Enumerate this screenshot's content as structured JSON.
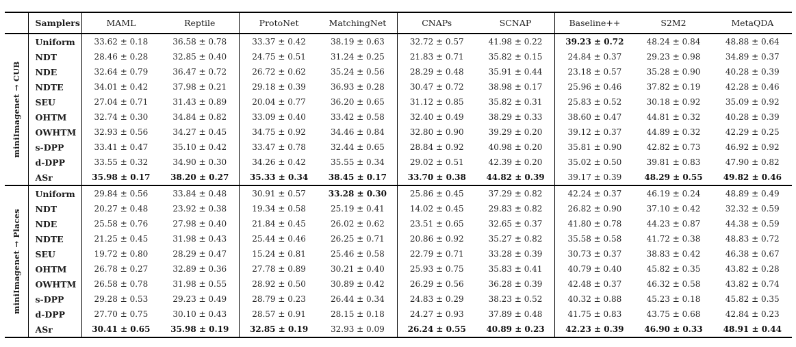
{
  "colors": {
    "background": "#ffffff",
    "text": "#1b1b1b",
    "rule": "#000000"
  },
  "table": {
    "header": {
      "samplers": "Samplers",
      "methods": [
        "MAML",
        "Reptile",
        "ProtoNet",
        "MatchingNet",
        "CNAPs",
        "SCNAP",
        "Baseline++",
        "S2M2",
        "MetaQDA"
      ]
    },
    "sections": [
      {
        "group_label": "miniImagenet → CUB",
        "rows": [
          {
            "sampler": "Uniform",
            "values": [
              "33.62 ± 0.18",
              "36.58 ± 0.78",
              "33.37 ± 0.42",
              "38.19 ± 0.63",
              "32.72 ± 0.57",
              "41.98 ± 0.22",
              "39.23 ± 0.72",
              "48.24 ± 0.84",
              "48.88 ± 0.64"
            ],
            "bold": [
              6
            ]
          },
          {
            "sampler": "NDT",
            "values": [
              "28.46 ± 0.28",
              "32.85 ± 0.40",
              "24.75 ± 0.51",
              "31.24 ± 0.25",
              "21.83 ± 0.71",
              "35.82 ± 0.15",
              "24.84 ± 0.37",
              "29.23 ± 0.98",
              "34.89 ± 0.37"
            ],
            "bold": []
          },
          {
            "sampler": "NDE",
            "values": [
              "32.64 ± 0.79",
              "36.47 ± 0.72",
              "26.72 ± 0.62",
              "35.24 ± 0.56",
              "28.29 ± 0.48",
              "35.91 ± 0.44",
              "23.18 ± 0.57",
              "35.28 ± 0.90",
              "40.28 ± 0.39"
            ],
            "bold": []
          },
          {
            "sampler": "NDTE",
            "values": [
              "34.01 ± 0.42",
              "37.98 ± 0.21",
              "29.18 ± 0.39",
              "36.93 ± 0.28",
              "30.47 ± 0.72",
              "38.98 ± 0.17",
              "25.96 ± 0.46",
              "37.82 ± 0.19",
              "42.28 ± 0.46"
            ],
            "bold": []
          },
          {
            "sampler": "SEU",
            "values": [
              "27.04 ± 0.71",
              "31.43 ± 0.89",
              "20.04 ± 0.77",
              "36.20 ± 0.65",
              "31.12 ± 0.85",
              "35.82 ± 0.31",
              "25.83 ± 0.52",
              "30.18 ± 0.92",
              "35.09 ± 0.92"
            ],
            "bold": []
          },
          {
            "sampler": "OHTM",
            "values": [
              "32.74 ± 0.30",
              "34.84 ± 0.82",
              "33.09 ± 0.40",
              "33.42 ± 0.58",
              "32.40 ± 0.49",
              "38.29 ± 0.33",
              "38.60 ± 0.47",
              "44.81 ± 0.32",
              "40.28 ± 0.39"
            ],
            "bold": []
          },
          {
            "sampler": "OWHTM",
            "values": [
              "32.93 ± 0.56",
              "34.27 ± 0.45",
              "34.75 ± 0.92",
              "34.46 ± 0.84",
              "32.80 ± 0.90",
              "39.29 ± 0.20",
              "39.12 ± 0.37",
              "44.89 ± 0.32",
              "42.29 ± 0.25"
            ],
            "bold": []
          },
          {
            "sampler": "s-DPP",
            "values": [
              "33.41 ± 0.47",
              "35.10 ± 0.42",
              "33.47 ± 0.78",
              "32.44 ± 0.65",
              "28.84 ± 0.92",
              "40.98 ± 0.20",
              "35.81 ± 0.90",
              "42.82 ± 0.73",
              "46.92 ± 0.92"
            ],
            "bold": []
          },
          {
            "sampler": "d-DPP",
            "values": [
              "33.55 ± 0.32",
              "34.90 ± 0.30",
              "34.26 ± 0.42",
              "35.55 ± 0.34",
              "29.02 ± 0.51",
              "42.39 ± 0.20",
              "35.02 ± 0.50",
              "39.81 ± 0.83",
              "47.90 ± 0.82"
            ],
            "bold": []
          },
          {
            "sampler": "ASr",
            "values": [
              "35.98 ± 0.17",
              "38.20 ± 0.27",
              "35.33 ± 0.34",
              "38.45 ± 0.17",
              "33.70 ± 0.38",
              "44.82 ± 0.39",
              "39.17 ± 0.39",
              "48.29 ± 0.55",
              "49.82 ± 0.46"
            ],
            "bold": [
              0,
              1,
              2,
              3,
              4,
              5,
              7,
              8
            ]
          }
        ]
      },
      {
        "group_label": "miniImagenet → Places",
        "rows": [
          {
            "sampler": "Uniform",
            "values": [
              "29.84 ± 0.56",
              "33.84 ± 0.48",
              "30.91 ± 0.57",
              "33.28 ± 0.30",
              "25.86 ± 0.45",
              "37.29 ± 0.82",
              "42.24 ± 0.37",
              "46.19 ± 0.24",
              "48.89 ± 0.49"
            ],
            "bold": [
              3
            ]
          },
          {
            "sampler": "NDT",
            "values": [
              "20.27 ± 0.48",
              "23.92 ± 0.38",
              "19.34 ± 0.58",
              "25.19 ± 0.41",
              "14.02 ± 0.45",
              "29.83 ± 0.82",
              "26.82 ± 0.90",
              "37.10 ± 0.42",
              "32.32 ± 0.59"
            ],
            "bold": []
          },
          {
            "sampler": "NDE",
            "values": [
              "25.58 ± 0.76",
              "27.98 ± 0.40",
              "21.84 ± 0.45",
              "26.02 ± 0.62",
              "23.51 ± 0.65",
              "32.65 ± 0.37",
              "41.80 ± 0.78",
              "44.23 ± 0.87",
              "44.38 ± 0.59"
            ],
            "bold": []
          },
          {
            "sampler": "NDTE",
            "values": [
              "21.25 ± 0.45",
              "31.98 ± 0.43",
              "25.44 ± 0.46",
              "26.25 ± 0.71",
              "20.86 ± 0.92",
              "35.27 ± 0.82",
              "35.58 ± 0.58",
              "41.72 ± 0.38",
              "48.83 ± 0.72"
            ],
            "bold": []
          },
          {
            "sampler": "SEU",
            "values": [
              "19.72 ± 0.80",
              "28.29 ± 0.47",
              "15.24 ± 0.81",
              "25.46 ± 0.58",
              "22.79 ± 0.71",
              "33.28 ± 0.39",
              "30.73 ± 0.37",
              "38.83 ± 0.42",
              "46.38 ± 0.67"
            ],
            "bold": []
          },
          {
            "sampler": "OHTM",
            "values": [
              "26.78 ± 0.27",
              "32.89 ± 0.36",
              "27.78 ± 0.89",
              "30.21 ± 0.40",
              "25.93 ± 0.75",
              "35.83 ± 0.41",
              "40.79 ± 0.40",
              "45.82 ± 0.35",
              "43.82 ± 0.28"
            ],
            "bold": []
          },
          {
            "sampler": "OWHTM",
            "values": [
              "26.58 ± 0.78",
              "31.98 ± 0.55",
              "28.92 ± 0.50",
              "30.89 ± 0.42",
              "26.29 ± 0.56",
              "36.28 ± 0.39",
              "42.48 ± 0.37",
              "46.32 ± 0.58",
              "43.82 ± 0.74"
            ],
            "bold": []
          },
          {
            "sampler": "s-DPP",
            "values": [
              "29.28 ± 0.53",
              "29.23 ± 0.49",
              "28.79 ± 0.23",
              "26.44 ± 0.34",
              "24.83 ± 0.29",
              "38.23 ± 0.52",
              "40.32 ± 0.88",
              "45.23 ± 0.18",
              "45.82 ± 0.35"
            ],
            "bold": []
          },
          {
            "sampler": "d-DPP",
            "values": [
              "27.70 ± 0.75",
              "30.10 ± 0.43",
              "28.57 ± 0.91",
              "28.15 ± 0.18",
              "24.27 ± 0.93",
              "37.89 ± 0.48",
              "41.75 ± 0.83",
              "43.75 ± 0.68",
              "42.84 ± 0.23"
            ],
            "bold": []
          },
          {
            "sampler": "ASr",
            "values": [
              "30.41 ± 0.65",
              "35.98 ± 0.19",
              "32.85 ± 0.19",
              "32.93 ± 0.09",
              "26.24 ± 0.55",
              "40.89 ± 0.23",
              "42.23 ± 0.39",
              "46.90 ± 0.33",
              "48.91 ± 0.44"
            ],
            "bold": [
              0,
              1,
              2,
              4,
              5,
              6,
              7,
              8
            ]
          }
        ]
      }
    ]
  }
}
